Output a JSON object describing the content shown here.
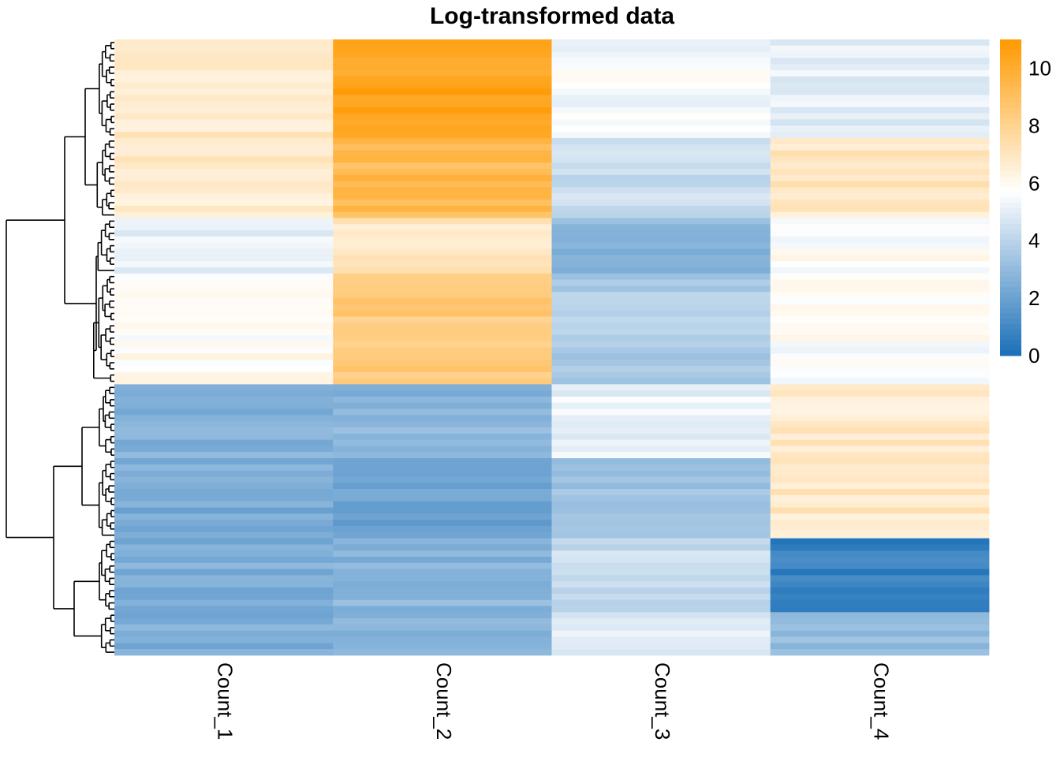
{
  "chart_data": {
    "type": "heatmap",
    "title": "Log-transformed data",
    "columns": [
      "Count_1",
      "Count_2",
      "Count_3",
      "Count_4"
    ],
    "row_count": 100,
    "row_dendrogram": true,
    "color_scale": {
      "min": 0,
      "max": 11,
      "mid": 5.7,
      "low_color": "#1a6fb8",
      "mid_color": "#ffffff",
      "high_color": "#ff9900",
      "ticks": [
        0,
        2,
        4,
        6,
        8,
        10
      ]
    },
    "row_groups": [
      {
        "rows": 16,
        "values": [
          6.8,
          10.4,
          5.5,
          5.0
        ]
      },
      {
        "rows": 13,
        "values": [
          6.8,
          9.3,
          4.4,
          6.9
        ]
      },
      {
        "rows": 9,
        "values": [
          5.2,
          7.0,
          2.9,
          5.8
        ]
      },
      {
        "rows": 18,
        "values": [
          5.9,
          8.4,
          3.7,
          5.7
        ]
      },
      {
        "rows": 12,
        "values": [
          2.6,
          2.8,
          5.2,
          6.8
        ]
      },
      {
        "rows": 13,
        "values": [
          2.4,
          2.0,
          3.4,
          6.9
        ]
      },
      {
        "rows": 12,
        "values": [
          2.6,
          2.8,
          4.3,
          0.7
        ]
      },
      {
        "rows": 7,
        "values": [
          2.5,
          2.7,
          5.0,
          3.0
        ]
      }
    ]
  }
}
